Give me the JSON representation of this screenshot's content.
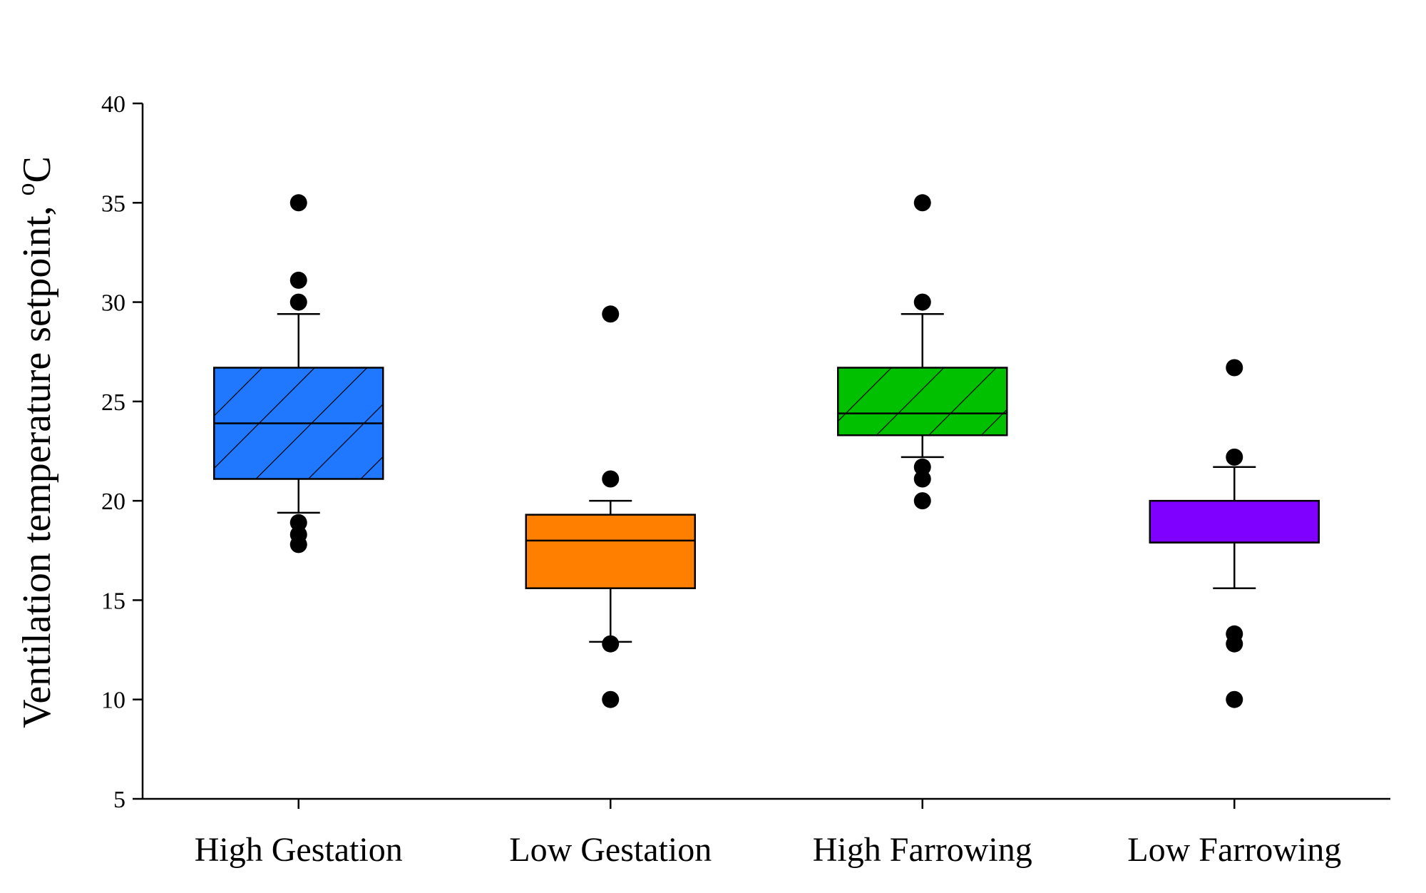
{
  "chart_data": {
    "type": "box",
    "ylabel": "Ventilation temperature setpoint, ",
    "ylabel_unit": "°C",
    "xlabel": "",
    "ylim": [
      5,
      40
    ],
    "yticks": [
      "5",
      "10",
      "15",
      "20",
      "25",
      "30",
      "35",
      "40"
    ],
    "grid": false,
    "categories": [
      "High Gestation",
      "Low Gestation",
      "High Farrowing",
      "Low Farrowing"
    ],
    "boxes": [
      {
        "name": "High Gestation",
        "whisker_low": 19.4,
        "q1": 21.1,
        "median": 23.9,
        "q3": 26.7,
        "whisker_high": 29.4,
        "outliers": [
          17.8,
          18.3,
          18.9,
          30.0,
          31.1,
          35.0
        ],
        "color": "#1f78ff",
        "hatched": true
      },
      {
        "name": "Low Gestation",
        "whisker_low": 12.9,
        "q1": 15.6,
        "median": 18.0,
        "q3": 19.3,
        "whisker_high": 20.0,
        "outliers": [
          10.0,
          12.8,
          21.1,
          29.4
        ],
        "color": "#ff8000",
        "hatched": false
      },
      {
        "name": "High Farrowing",
        "whisker_low": 22.2,
        "q1": 23.3,
        "median": 24.4,
        "q3": 26.7,
        "whisker_high": 29.4,
        "outliers": [
          20.0,
          21.1,
          21.7,
          30.0,
          35.0
        ],
        "color": "#00c000",
        "hatched": true
      },
      {
        "name": "Low Farrowing",
        "whisker_low": 15.6,
        "q1": 17.9,
        "median": 17.9,
        "q3": 20.0,
        "whisker_high": 21.7,
        "outliers": [
          10.0,
          12.8,
          13.3,
          22.2,
          26.7
        ],
        "color": "#8000ff",
        "hatched": false
      }
    ]
  }
}
